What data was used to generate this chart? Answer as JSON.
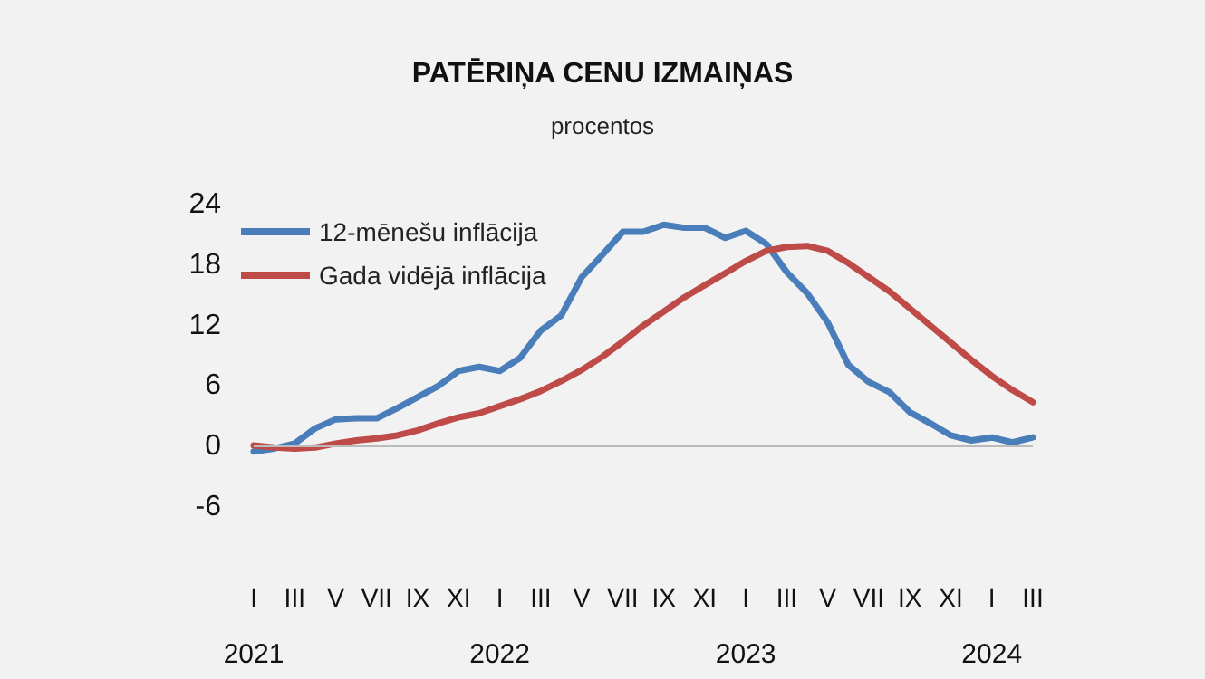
{
  "chart_data": {
    "type": "line",
    "title": "PATĒRIŅA CENU IZMAIŅAS",
    "subtitle": "procentos",
    "categories": [
      "I\n2021",
      null,
      "III",
      null,
      "V",
      null,
      "VII",
      null,
      "IX",
      null,
      "XI",
      null,
      "I\n2022",
      null,
      "III",
      null,
      "V",
      null,
      "VII",
      null,
      "IX",
      null,
      "XI",
      null,
      "I\n2023",
      null,
      "III",
      null,
      "V",
      null,
      "VII",
      null,
      "IX",
      null,
      "XI",
      null,
      "I\n2024",
      null,
      "III"
    ],
    "series": [
      {
        "name": "12-mēnešu inflācija",
        "color": "#4a7ebb",
        "values": [
          -0.5,
          -0.2,
          0.3,
          1.8,
          2.7,
          2.8,
          2.8,
          3.8,
          4.9,
          6.0,
          7.5,
          7.9,
          7.5,
          8.8,
          11.5,
          13.0,
          16.8,
          19.0,
          21.3,
          21.3,
          22.0,
          21.7,
          21.7,
          20.7,
          21.4,
          20.1,
          17.3,
          15.2,
          12.3,
          8.1,
          6.4,
          5.4,
          3.4,
          2.3,
          1.1,
          0.6,
          0.9,
          0.4,
          0.9
        ]
      },
      {
        "name": "Gada vidējā inflācija",
        "color": "#be4b48",
        "values": [
          0.1,
          -0.1,
          -0.2,
          -0.1,
          0.3,
          0.6,
          0.8,
          1.1,
          1.6,
          2.3,
          2.9,
          3.3,
          4.0,
          4.7,
          5.5,
          6.5,
          7.6,
          8.9,
          10.4,
          12.0,
          13.4,
          14.8,
          16.0,
          17.2,
          18.4,
          19.4,
          19.8,
          19.9,
          19.4,
          18.2,
          16.8,
          15.4,
          13.7,
          12.0,
          10.3,
          8.6,
          7.0,
          5.6,
          4.4
        ]
      }
    ],
    "ylim": [
      -6,
      24
    ],
    "yticks": [
      -6,
      0,
      6,
      12,
      18,
      24
    ],
    "grid": false,
    "ref_lines": [
      {
        "axis": "y",
        "value": 0,
        "color": "#bbbbbb"
      }
    ],
    "legend": "top left",
    "marker": "none",
    "line_style": "solid"
  }
}
